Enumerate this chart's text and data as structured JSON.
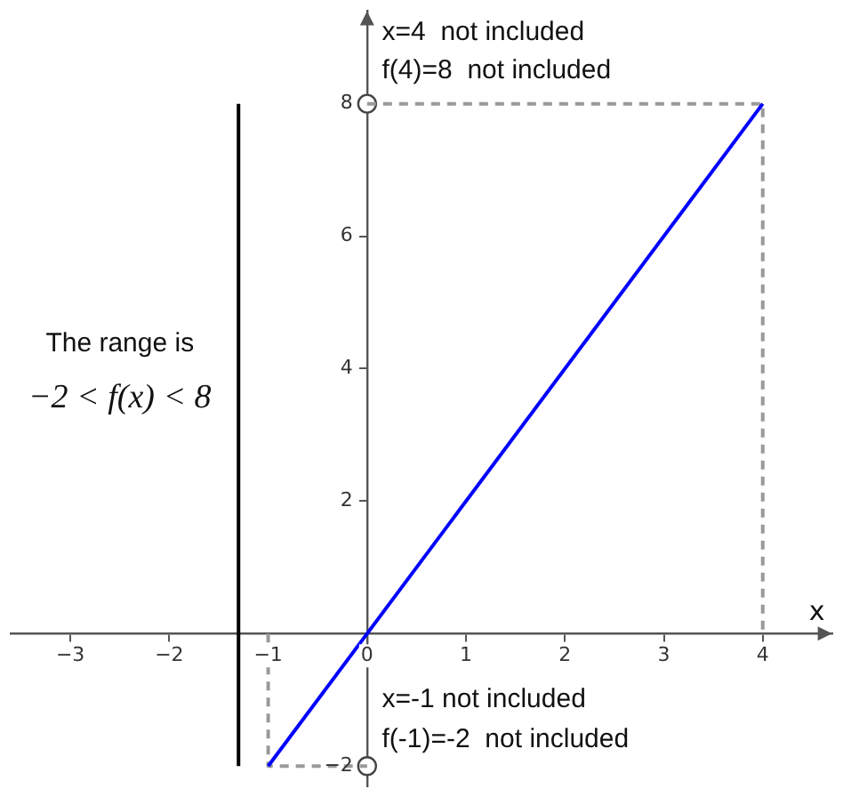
{
  "chart_data": {
    "type": "line",
    "xlabel": "x",
    "xlim": [
      -3.6,
      4.7
    ],
    "ylim": [
      -2.3,
      9.4
    ],
    "xticks": [
      -3,
      -2,
      -1,
      0,
      1,
      2,
      3,
      4
    ],
    "yticks": [
      -2,
      2,
      4,
      6,
      8
    ],
    "grid": false,
    "legend": false,
    "series": [
      {
        "color": "#0000ff",
        "x": [
          -1,
          4
        ],
        "values": [
          -2,
          8
        ]
      },
      {
        "type": "line",
        "color": "#999999",
        "line_style": "dashed",
        "x": [
          -1,
          -1,
          0
        ],
        "values": [
          0,
          -2,
          -2
        ]
      },
      {
        "type": "line",
        "color": "#999999",
        "line_style": "dashed",
        "x": [
          0,
          4,
          4
        ],
        "values": [
          8,
          8,
          0
        ]
      },
      {
        "type": "line",
        "color": "#000000",
        "x": [
          -1.3,
          -1.3
        ],
        "values": [
          -2,
          8
        ]
      },
      {
        "type": "scatter",
        "color": "#444444",
        "marker": "circle",
        "x": [
          0,
          0
        ],
        "values": [
          8,
          -2
        ]
      }
    ],
    "annotations": [
      "x=4  not included",
      "f(4)=8  not included",
      "x=-1 not included",
      "f(-1)=-2  not included",
      "The range is",
      "−2 < f(x) < 8"
    ]
  }
}
